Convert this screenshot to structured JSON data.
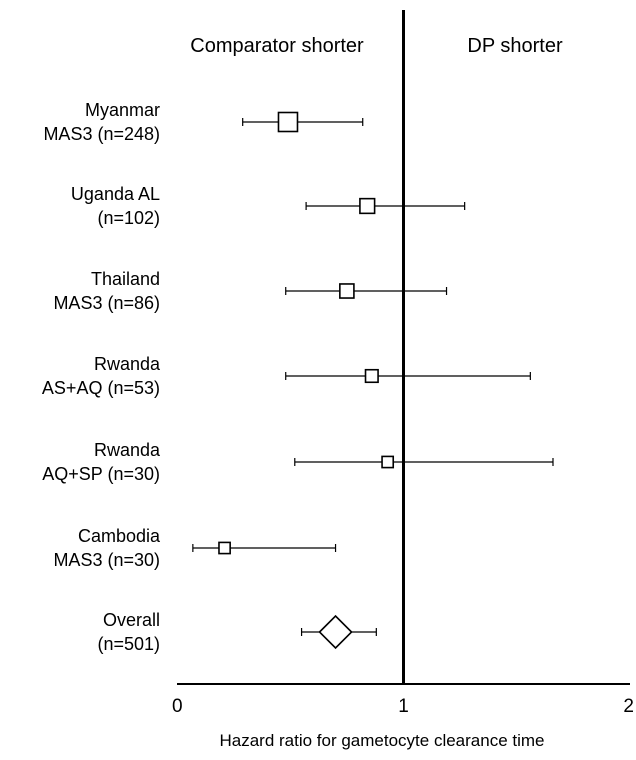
{
  "chart_data": {
    "type": "forest",
    "xlabel": "Hazard ratio for gametocyte clearance time",
    "header_left": "Comparator shorter",
    "header_right": "DP shorter",
    "xlim": [
      0,
      2
    ],
    "xticks": [
      0,
      1,
      2
    ],
    "reference_line": 1,
    "studies": [
      {
        "line1": "Myanmar",
        "line2": "MAS3   (n=248)",
        "hr": 0.49,
        "lo": 0.29,
        "hi": 0.82,
        "weight": 248
      },
      {
        "line1": "Uganda   AL",
        "line2": "(n=102)",
        "hr": 0.84,
        "lo": 0.57,
        "hi": 1.27,
        "weight": 102
      },
      {
        "line1": "Thailand",
        "line2": "MAS3   (n=86)",
        "hr": 0.75,
        "lo": 0.48,
        "hi": 1.19,
        "weight": 86
      },
      {
        "line1": "Rwanda",
        "line2": "AS+AQ   (n=53)",
        "hr": 0.86,
        "lo": 0.48,
        "hi": 1.56,
        "weight": 53
      },
      {
        "line1": "Rwanda",
        "line2": "AQ+SP   (n=30)",
        "hr": 0.93,
        "lo": 0.52,
        "hi": 1.66,
        "weight": 30
      },
      {
        "line1": "Cambodia",
        "line2": "MAS3   (n=30)",
        "hr": 0.21,
        "lo": 0.07,
        "hi": 0.7,
        "weight": 30
      }
    ],
    "overall": {
      "line1": "Overall",
      "line2": "(n=501)",
      "hr": 0.7,
      "lo": 0.55,
      "hi": 0.88
    }
  }
}
